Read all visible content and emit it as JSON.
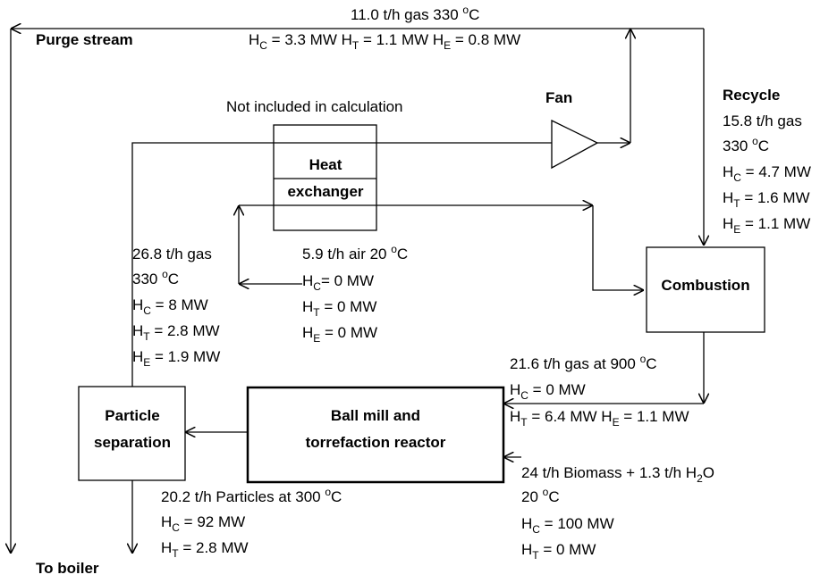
{
  "labels": [
    {
      "lines": [
        [
          {
            "text": "11.0 t/h gas 330 "
          },
          {
            "sup": "o"
          },
          {
            "text": "C"
          }
        ],
        [
          {
            "text": "H"
          },
          {
            "sub": "C"
          },
          {
            "text": " = 3.3 MW H"
          },
          {
            "sub": "T"
          },
          {
            "text": " = 1.1 MW H"
          },
          {
            "sub": "E"
          },
          {
            "text": " = 0.8 MW"
          }
        ]
      ]
    },
    {
      "bold": true,
      "lines": [
        [
          {
            "text": "Purge stream"
          }
        ]
      ]
    },
    {
      "lines": [
        [
          {
            "text": "Not included in calculation"
          }
        ]
      ]
    },
    {
      "bold": true,
      "lines": [
        [
          {
            "text": "Fan"
          }
        ]
      ]
    },
    {
      "lines": [
        [
          {
            "text": "15.8 t/h gas"
          }
        ],
        [
          {
            "text": "330 "
          },
          {
            "sup": "o"
          },
          {
            "text": "C"
          }
        ],
        [
          {
            "text": "H"
          },
          {
            "sub": "C"
          },
          {
            "text": " = 4.7 MW"
          }
        ],
        [
          {
            "text": "H"
          },
          {
            "sub": "T"
          },
          {
            "text": " = 1.6 MW"
          }
        ],
        [
          {
            "text": "H"
          },
          {
            "sub": "E"
          },
          {
            "text": " = 1.1 MW"
          }
        ]
      ]
    },
    {
      "bold": true,
      "lines": [
        [
          {
            "text": "Recycle"
          }
        ]
      ]
    },
    {
      "lines": [
        [
          {
            "text": "26.8 t/h gas"
          }
        ],
        [
          {
            "text": "330 "
          },
          {
            "sup": "o"
          },
          {
            "text": "C"
          }
        ],
        [
          {
            "text": "H"
          },
          {
            "sub": "C"
          },
          {
            "text": " = 8 MW"
          }
        ],
        [
          {
            "text": "H"
          },
          {
            "sub": "T"
          },
          {
            "text": " = 2.8 MW"
          }
        ],
        [
          {
            "text": "H"
          },
          {
            "sub": "E"
          },
          {
            "text": " = 1.9 MW"
          }
        ]
      ]
    },
    {
      "lines": [
        [
          {
            "text": "5.9 t/h air 20 "
          },
          {
            "sup": "o"
          },
          {
            "text": "C"
          }
        ],
        [
          {
            "text": "H"
          },
          {
            "sub": "C"
          },
          {
            "text": "= 0 MW"
          }
        ],
        [
          {
            "text": "H"
          },
          {
            "sub": "T"
          },
          {
            "text": " = 0 MW"
          }
        ],
        [
          {
            "text": "H"
          },
          {
            "sub": "E"
          },
          {
            "text": " = 0 MW"
          }
        ]
      ]
    },
    {
      "lines": [
        [
          {
            "text": "21.6 t/h gas at 900 "
          },
          {
            "sup": "o"
          },
          {
            "text": "C"
          }
        ],
        [
          {
            "text": "H"
          },
          {
            "sub": "C"
          },
          {
            "text": " = 0 MW"
          }
        ],
        [
          {
            "text": "H"
          },
          {
            "sub": "T"
          },
          {
            "text": " = 6.4  MW H"
          },
          {
            "sub": "E"
          },
          {
            "text": " = 1.1 MW"
          }
        ]
      ]
    },
    {
      "lines": [
        [
          {
            "text": "24 t/h Biomass + 1.3 t/h H"
          },
          {
            "sub": "2"
          },
          {
            "text": "O"
          }
        ],
        [
          {
            "text": "20 "
          },
          {
            "sup": "o"
          },
          {
            "text": "C"
          }
        ],
        [
          {
            "text": "H"
          },
          {
            "sub": "C"
          },
          {
            "text": " = 100 MW"
          }
        ],
        [
          {
            "text": "H"
          },
          {
            "sub": "T"
          },
          {
            "text": " = 0 MW"
          }
        ]
      ]
    },
    {
      "lines": [
        [
          {
            "text": "20.2 t/h Particles at 300 "
          },
          {
            "sup": "o"
          },
          {
            "text": "C"
          }
        ],
        [
          {
            "text": "H"
          },
          {
            "sub": "C"
          },
          {
            "text": " = 92 MW"
          }
        ],
        [
          {
            "text": "H"
          },
          {
            "sub": "T"
          },
          {
            "text": " = 2.8 MW"
          }
        ]
      ]
    },
    {
      "bold": true,
      "lines": [
        [
          {
            "text": "To boiler"
          }
        ]
      ]
    }
  ],
  "nodes": [
    {
      "label": [
        "Heat",
        "exchanger"
      ]
    },
    {
      "label": [
        "Combustion"
      ]
    },
    {
      "label": [
        "Ball mill and",
        "torrefaction reactor"
      ]
    },
    {
      "label": [
        "Particle",
        "separation"
      ]
    }
  ]
}
